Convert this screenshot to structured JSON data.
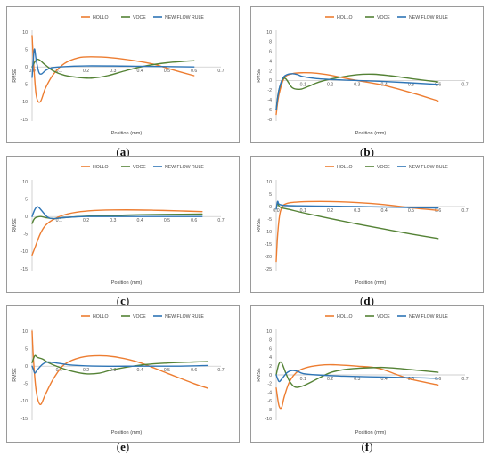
{
  "colors": {
    "HOLLO": "#ED7D31",
    "VOCE": "#548235",
    "NEW FLOW RULE": "#2E75B6"
  },
  "chart_data": [
    {
      "type": "line",
      "caption": "a",
      "xlabel": "Position (mm)",
      "ylabel": "RMSE",
      "xlim": [
        0,
        0.7
      ],
      "ylim": [
        -15,
        10
      ],
      "yticks": [
        10,
        5,
        0,
        -5,
        -10,
        -15
      ],
      "xticks": [
        0.0,
        0.1,
        0.2,
        0.3,
        0.4,
        0.5,
        0.6,
        0.7
      ],
      "xtick_labels": [
        "0.0",
        "0.1",
        "0.2",
        "0.3",
        "0.4",
        "0.5",
        "0.6",
        "0.7"
      ],
      "series": [
        {
          "name": "HOLLO",
          "x": [
            0.0,
            0.005,
            0.015,
            0.03,
            0.05,
            0.08,
            0.12,
            0.17,
            0.22,
            0.3,
            0.38,
            0.45,
            0.52,
            0.6
          ],
          "y": [
            9,
            2,
            -8,
            -10,
            -6,
            -2,
            1,
            2.6,
            2.9,
            2.6,
            1.8,
            0.8,
            -0.8,
            -2.5
          ]
        },
        {
          "name": "VOCE",
          "x": [
            0.0,
            0.02,
            0.05,
            0.08,
            0.12,
            0.17,
            0.22,
            0.28,
            0.35,
            0.42,
            0.5,
            0.6
          ],
          "y": [
            0,
            2.2,
            0.5,
            -1.2,
            -2.4,
            -3,
            -3.2,
            -2.5,
            -1,
            0.3,
            1.2,
            1.8
          ]
        },
        {
          "name": "NEW FLOW RULE",
          "x": [
            0.0,
            0.008,
            0.015,
            0.025,
            0.035,
            0.05,
            0.07,
            0.1,
            0.2,
            0.4,
            0.6
          ],
          "y": [
            -3,
            5,
            2,
            -1.5,
            -2,
            -1,
            -0.3,
            0,
            0.3,
            0.2,
            0
          ]
        }
      ]
    },
    {
      "type": "line",
      "caption": "b",
      "xlabel": "Position (mm)",
      "ylabel": "RMSE",
      "xlim": [
        0,
        0.7
      ],
      "ylim": [
        -8,
        10
      ],
      "yticks": [
        10,
        8,
        6,
        4,
        2,
        0,
        -2,
        -4,
        -6,
        -8
      ],
      "xticks": [
        0.1,
        0.2,
        0.3,
        0.4,
        0.5,
        0.6,
        0.7
      ],
      "xtick_labels": [
        "0.1",
        "0.2",
        "0.3",
        "0.4",
        "0.5",
        "0.6",
        "0.7"
      ],
      "series": [
        {
          "name": "HOLLO",
          "x": [
            0.0,
            0.01,
            0.03,
            0.06,
            0.1,
            0.15,
            0.2,
            0.3,
            0.4,
            0.5,
            0.6
          ],
          "y": [
            -7,
            -3,
            0.5,
            1.4,
            1.6,
            1.5,
            1.1,
            0,
            -1,
            -2.5,
            -4.2
          ]
        },
        {
          "name": "VOCE",
          "x": [
            0.0,
            0.01,
            0.03,
            0.06,
            0.09,
            0.12,
            0.16,
            0.22,
            0.3,
            0.36,
            0.42,
            0.5,
            0.6
          ],
          "y": [
            -6,
            -2,
            0.5,
            -1.5,
            -1.8,
            -1.2,
            -0.3,
            0.5,
            1.2,
            1.3,
            1,
            0.4,
            -0.3
          ]
        },
        {
          "name": "NEW FLOW RULE",
          "x": [
            0.0,
            0.01,
            0.025,
            0.04,
            0.06,
            0.08,
            0.1,
            0.15,
            0.25,
            0.4,
            0.6
          ],
          "y": [
            -6,
            -2,
            0.5,
            1.2,
            1.4,
            1.2,
            0.8,
            0.4,
            0.1,
            -0.2,
            -0.8
          ]
        }
      ]
    },
    {
      "type": "line",
      "caption": "c",
      "xlabel": "Position (mm)",
      "ylabel": "RMSE",
      "xlim": [
        0,
        0.7
      ],
      "ylim": [
        -15,
        10
      ],
      "yticks": [
        10,
        5,
        0,
        -5,
        -10,
        -15
      ],
      "xticks": [
        0.1,
        0.2,
        0.3,
        0.4,
        0.5,
        0.6,
        0.7
      ],
      "xtick_labels": [
        "0.1",
        "0.2",
        "0.3",
        "0.4",
        "0.5",
        "0.6",
        "0.7"
      ],
      "series": [
        {
          "name": "HOLLO",
          "x": [
            0.0,
            0.01,
            0.03,
            0.05,
            0.08,
            0.12,
            0.18,
            0.25,
            0.35,
            0.45,
            0.55,
            0.63
          ],
          "y": [
            -11,
            -9,
            -5,
            -2.5,
            -0.8,
            0.5,
            1.4,
            1.8,
            1.9,
            1.8,
            1.6,
            1.4
          ]
        },
        {
          "name": "VOCE",
          "x": [
            0.0,
            0.01,
            0.03,
            0.05,
            0.08,
            0.12,
            0.2,
            0.3,
            0.4,
            0.5,
            0.63
          ],
          "y": [
            -2,
            -0.5,
            0,
            -0.3,
            -0.6,
            -0.3,
            0.1,
            0.3,
            0.5,
            0.6,
            0.7
          ]
        },
        {
          "name": "NEW FLOW RULE",
          "x": [
            0.0,
            0.01,
            0.02,
            0.03,
            0.045,
            0.06,
            0.08,
            0.12,
            0.2,
            0.3,
            0.45,
            0.63
          ],
          "y": [
            0,
            2,
            2.8,
            2.2,
            0.8,
            -0.3,
            -0.6,
            -0.3,
            0,
            0,
            0,
            0
          ]
        }
      ]
    },
    {
      "type": "line",
      "caption": "d",
      "xlabel": "Position (mm)",
      "ylabel": "RMSE",
      "xlim": [
        0,
        0.7
      ],
      "ylim": [
        -25,
        10
      ],
      "yticks": [
        10,
        5,
        0,
        -5,
        -10,
        -15,
        -20,
        -25
      ],
      "xticks": [
        0.0,
        0.1,
        0.2,
        0.3,
        0.4,
        0.5,
        0.6,
        0.7
      ],
      "xtick_labels": [
        "0.0",
        "0.1",
        "0.2",
        "0.3",
        "0.4",
        "0.5",
        "0.6",
        "0.7"
      ],
      "series": [
        {
          "name": "HOLLO",
          "x": [
            0.0,
            0.005,
            0.012,
            0.02,
            0.03,
            0.05,
            0.08,
            0.12,
            0.2,
            0.3,
            0.4,
            0.5,
            0.6
          ],
          "y": [
            -22,
            -12,
            -4,
            -0.5,
            0.8,
            1.5,
            1.8,
            2,
            2,
            1.6,
            0.8,
            -0.5,
            -1.5
          ]
        },
        {
          "name": "VOCE",
          "x": [
            0.0,
            0.005,
            0.012,
            0.02,
            0.05,
            0.1,
            0.2,
            0.3,
            0.4,
            0.5,
            0.6
          ],
          "y": [
            -1,
            1,
            0,
            -0.5,
            -1.2,
            -2.5,
            -4.8,
            -7,
            -9,
            -11,
            -12.8
          ]
        },
        {
          "name": "NEW FLOW RULE",
          "x": [
            0.0,
            0.005,
            0.01,
            0.02,
            0.04,
            0.08,
            0.15,
            0.3,
            0.45,
            0.6
          ],
          "y": [
            -1,
            2,
            1,
            0.6,
            0.4,
            0.3,
            0.2,
            0,
            -0.3,
            -0.6
          ]
        }
      ]
    },
    {
      "type": "line",
      "caption": "e",
      "xlabel": "Position (mm)",
      "ylabel": "RMSE",
      "xlim": [
        0,
        0.7
      ],
      "ylim": [
        -15,
        10
      ],
      "yticks": [
        10,
        5,
        0,
        -5,
        -10,
        -15
      ],
      "xticks": [
        0.1,
        0.2,
        0.3,
        0.4,
        0.5,
        0.6,
        0.7
      ],
      "xtick_labels": [
        "0.1",
        "0.2",
        "0.3",
        "0.4",
        "0.5",
        "0.6",
        "0.7"
      ],
      "series": [
        {
          "name": "HOLLO",
          "x": [
            0.0,
            0.005,
            0.015,
            0.03,
            0.05,
            0.08,
            0.12,
            0.18,
            0.25,
            0.32,
            0.4,
            0.5,
            0.6,
            0.65
          ],
          "y": [
            10,
            2,
            -7,
            -11,
            -8,
            -3.5,
            0.5,
            2.5,
            3,
            2.5,
            1,
            -2,
            -5,
            -6.3
          ]
        },
        {
          "name": "VOCE",
          "x": [
            0.0,
            0.01,
            0.02,
            0.04,
            0.06,
            0.1,
            0.15,
            0.2,
            0.25,
            0.3,
            0.4,
            0.5,
            0.6,
            0.65
          ],
          "y": [
            1,
            3,
            2.5,
            2,
            1,
            -0.3,
            -1.5,
            -2.2,
            -2,
            -1,
            0.3,
            0.9,
            1.2,
            1.3
          ]
        },
        {
          "name": "NEW FLOW RULE",
          "x": [
            0.0,
            0.005,
            0.01,
            0.02,
            0.04,
            0.06,
            0.1,
            0.15,
            0.25,
            0.4,
            0.55,
            0.65
          ],
          "y": [
            0,
            -1,
            -2,
            -1,
            0.6,
            1.2,
            0.8,
            0.3,
            0,
            0,
            0,
            0.2
          ]
        }
      ]
    },
    {
      "type": "line",
      "caption": "f",
      "xlabel": "Position (mm)",
      "ylabel": "RMSE",
      "xlim": [
        0,
        0.7
      ],
      "ylim": [
        -10,
        10
      ],
      "yticks": [
        10,
        8,
        6,
        4,
        2,
        0,
        -2,
        -4,
        -6,
        -8,
        -10
      ],
      "xticks": [
        0.1,
        0.2,
        0.3,
        0.4,
        0.5,
        0.6,
        0.7
      ],
      "xtick_labels": [
        "0.1",
        "0.2",
        "0.3",
        "0.4",
        "0.5",
        "0.6",
        "0.7"
      ],
      "series": [
        {
          "name": "HOLLO",
          "x": [
            0.0,
            0.01,
            0.02,
            0.03,
            0.05,
            0.08,
            0.12,
            0.18,
            0.22,
            0.3,
            0.38,
            0.45,
            0.5,
            0.6
          ],
          "y": [
            -3,
            -7,
            -7.5,
            -5,
            -1.5,
            0.8,
            1.8,
            2.3,
            2.3,
            2,
            1.5,
            0,
            -1,
            -2.3
          ]
        },
        {
          "name": "VOCE",
          "x": [
            0.0,
            0.01,
            0.02,
            0.035,
            0.05,
            0.07,
            0.1,
            0.15,
            0.2,
            0.25,
            0.3,
            0.4,
            0.5,
            0.6
          ],
          "y": [
            0,
            2.5,
            2.8,
            0.5,
            -1.5,
            -2.8,
            -2.5,
            -1,
            0.5,
            1.2,
            1.5,
            1.7,
            1.2,
            0.6
          ]
        },
        {
          "name": "NEW FLOW RULE",
          "x": [
            0.0,
            0.01,
            0.02,
            0.04,
            0.06,
            0.08,
            0.1,
            0.15,
            0.25,
            0.4,
            0.55,
            0.6
          ],
          "y": [
            0,
            -1.5,
            -1,
            0.5,
            1,
            0.8,
            0.3,
            0,
            -0.3,
            -0.5,
            -0.7,
            -0.8
          ]
        }
      ]
    }
  ]
}
